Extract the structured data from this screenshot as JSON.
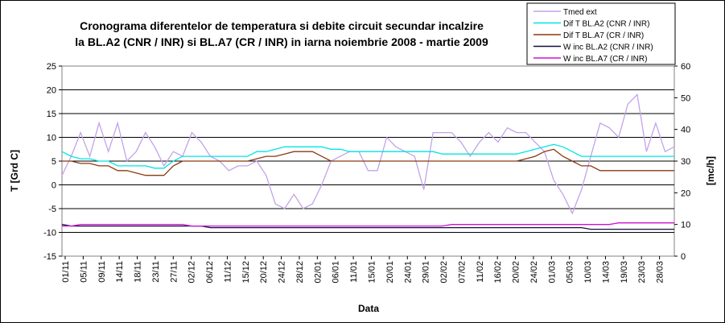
{
  "chart_data": {
    "type": "line",
    "title_line1": "Cronograma diferentelor de temperatura si debite circuit secundar incalzire",
    "title_line2": "la BL.A2 (CNR / INR) si BL.A7 (CR / INR) in iarna noiembrie 2008 - martie 2009",
    "xlabel": "Data",
    "ylabel_left": "T [Grd C]",
    "ylabel_right": "[mc/h]",
    "ylim_left": [
      -15,
      25
    ],
    "ylim_right": [
      0,
      60
    ],
    "yticks_left": [
      -15,
      -10,
      -5,
      0,
      5,
      10,
      15,
      20,
      25
    ],
    "yticks_right": [
      0,
      10,
      20,
      30,
      40,
      50,
      60
    ],
    "x_ticks": [
      "01/11",
      "05/11",
      "09/11",
      "14/11",
      "18/11",
      "23/11",
      "27/11",
      "02/12",
      "06/12",
      "11/12",
      "15/12",
      "20/12",
      "24/12",
      "28/12",
      "02/01",
      "06/01",
      "11/01",
      "15/01",
      "20/01",
      "24/01",
      "29/01",
      "02/02",
      "07/02",
      "11/02",
      "16/02",
      "20/02",
      "24/02",
      "01/03",
      "05/03",
      "10/03",
      "14/03",
      "19/03",
      "23/03",
      "28/03"
    ],
    "grid": "horizontal",
    "legend_position": "top-right",
    "series": [
      {
        "name": "Tmed ext",
        "axis": "left",
        "color": "#c3a3e8",
        "values": [
          2,
          6,
          11,
          6,
          13,
          7,
          13,
          5,
          7,
          11,
          8,
          4,
          7,
          6,
          11,
          9,
          6,
          5,
          3,
          4,
          4,
          5,
          2,
          -4,
          -5,
          -2,
          -5,
          -4,
          0,
          5,
          6,
          7,
          7,
          3,
          3,
          10,
          8,
          7,
          6,
          -1,
          11,
          11,
          11,
          9,
          6,
          9,
          11,
          9,
          12,
          11,
          11,
          9,
          7,
          1,
          -2,
          -6,
          -1,
          6,
          13,
          12,
          10,
          17,
          19,
          7,
          13,
          7,
          8
        ]
      },
      {
        "name": "Dif T BL.A2 (CNR / INR)",
        "axis": "left",
        "color": "#00e5e5",
        "values": [
          7,
          6,
          5.5,
          5.5,
          5,
          5,
          4,
          4,
          4,
          4,
          3.5,
          3.5,
          5,
          6,
          6,
          6,
          6,
          6,
          6,
          6,
          6,
          7,
          7,
          7.5,
          8,
          8,
          8,
          8,
          8,
          7.5,
          7.5,
          7,
          7,
          7,
          7,
          7,
          7,
          7,
          7,
          7,
          7,
          6.5,
          6.5,
          6.5,
          6.5,
          6.5,
          6.5,
          6.5,
          6.5,
          6.5,
          7,
          7.5,
          8,
          8.5,
          8,
          7,
          6,
          6,
          6,
          6,
          6,
          6,
          6,
          6,
          6,
          6,
          6
        ]
      },
      {
        "name": "Dif T BL.A7 (CR / INR)",
        "axis": "left",
        "color": "#8b3a10",
        "values": [
          5,
          5,
          4.5,
          4.5,
          4,
          4,
          3,
          3,
          2.5,
          2,
          2,
          2,
          4,
          5,
          5,
          5,
          5,
          5,
          5,
          5,
          5,
          5.5,
          6,
          6,
          6.5,
          7,
          7,
          7,
          6,
          5,
          5,
          5,
          5,
          5,
          5,
          5,
          5,
          5,
          5,
          5,
          5,
          5,
          5,
          5,
          5,
          5,
          5,
          5,
          5,
          5,
          5.5,
          6,
          7,
          7.5,
          6,
          5,
          4,
          4,
          3,
          3,
          3,
          3,
          3,
          3,
          3,
          3,
          3
        ]
      },
      {
        "name": "W inc BL.A2 (CNR / INR)",
        "axis": "right",
        "color": "#101040",
        "values": [
          10,
          9.5,
          9.5,
          9.5,
          9.5,
          9.5,
          9.5,
          9.5,
          9.5,
          9.5,
          9.5,
          9.5,
          9.5,
          9.5,
          9.5,
          9.5,
          9,
          9,
          9,
          9,
          9,
          9,
          9,
          9,
          9,
          9,
          9,
          9,
          9,
          9,
          9,
          9,
          9,
          9,
          9,
          9,
          9,
          9,
          9,
          9,
          9,
          9,
          9,
          9,
          9,
          9,
          9,
          9,
          9,
          9,
          9,
          9,
          9,
          9,
          9,
          9,
          9,
          8.5,
          8.5,
          8.5,
          8.5,
          8.5,
          8.5,
          8.5,
          8.5,
          8.5,
          8.5
        ]
      },
      {
        "name": "W inc BL.A7 (CR / INR)",
        "axis": "right",
        "color": "#d010d0",
        "values": [
          9.5,
          9.5,
          10,
          10,
          10,
          10,
          10,
          10,
          10,
          10,
          10,
          10,
          10,
          10,
          9.5,
          9.5,
          9.5,
          9.5,
          9.5,
          9.5,
          9.5,
          9.5,
          9.5,
          9.5,
          9.5,
          9.5,
          9.5,
          9.5,
          9.5,
          9.5,
          9.5,
          9.5,
          9.5,
          9.5,
          9.5,
          9.5,
          9.5,
          9.5,
          9.5,
          9.5,
          9.5,
          9.5,
          10,
          10,
          10,
          10,
          10,
          10,
          10,
          10,
          10,
          10,
          10,
          10,
          10,
          10,
          10,
          10,
          10,
          10,
          10.5,
          10.5,
          10.5,
          10.5,
          10.5,
          10.5,
          10.5
        ]
      }
    ]
  }
}
